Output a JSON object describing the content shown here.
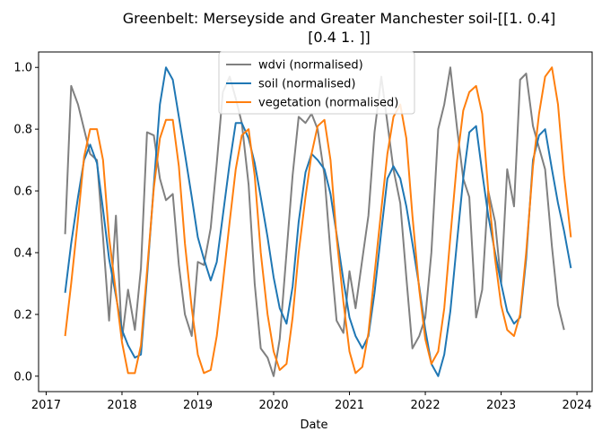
{
  "chart_data": {
    "type": "line",
    "title_line1": "Greenbelt: Merseyside and Greater Manchester soil-[[1.  0.4]",
    "title_line2": "[0.4 1. ]]",
    "xlabel": "Date",
    "ylabel": "",
    "xlim": [
      2016.9,
      2024.2
    ],
    "ylim": [
      -0.05,
      1.05
    ],
    "x_ticks": [
      2017,
      2018,
      2019,
      2020,
      2021,
      2022,
      2023,
      2024
    ],
    "x_tick_labels": [
      "2017",
      "2018",
      "2019",
      "2020",
      "2021",
      "2022",
      "2023",
      "2024"
    ],
    "y_ticks": [
      0.0,
      0.2,
      0.4,
      0.6,
      0.8,
      1.0
    ],
    "y_tick_labels": [
      "0.0",
      "0.2",
      "0.4",
      "0.6",
      "0.8",
      "1.0"
    ],
    "legend_position": "top-center",
    "grid": false,
    "series": [
      {
        "name": "wdvi (normalised)",
        "color": "#808080",
        "points": [
          [
            2017.25,
            0.46
          ],
          [
            2017.33,
            0.94
          ],
          [
            2017.42,
            0.88
          ],
          [
            2017.5,
            0.8
          ],
          [
            2017.58,
            0.72
          ],
          [
            2017.67,
            0.7
          ],
          [
            2017.75,
            0.45
          ],
          [
            2017.83,
            0.18
          ],
          [
            2017.92,
            0.52
          ],
          [
            2018.0,
            0.12
          ],
          [
            2018.08,
            0.28
          ],
          [
            2018.17,
            0.15
          ],
          [
            2018.25,
            0.35
          ],
          [
            2018.33,
            0.79
          ],
          [
            2018.42,
            0.78
          ],
          [
            2018.5,
            0.64
          ],
          [
            2018.58,
            0.57
          ],
          [
            2018.67,
            0.59
          ],
          [
            2018.75,
            0.36
          ],
          [
            2018.83,
            0.2
          ],
          [
            2018.92,
            0.13
          ],
          [
            2019.0,
            0.37
          ],
          [
            2019.08,
            0.36
          ],
          [
            2019.17,
            0.48
          ],
          [
            2019.25,
            0.69
          ],
          [
            2019.33,
            0.92
          ],
          [
            2019.42,
            0.97
          ],
          [
            2019.5,
            0.9
          ],
          [
            2019.58,
            0.82
          ],
          [
            2019.67,
            0.62
          ],
          [
            2019.75,
            0.3
          ],
          [
            2019.83,
            0.09
          ],
          [
            2019.92,
            0.06
          ],
          [
            2020.0,
            0.0
          ],
          [
            2020.08,
            0.12
          ],
          [
            2020.17,
            0.4
          ],
          [
            2020.25,
            0.65
          ],
          [
            2020.33,
            0.84
          ],
          [
            2020.42,
            0.82
          ],
          [
            2020.5,
            0.85
          ],
          [
            2020.58,
            0.8
          ],
          [
            2020.67,
            0.65
          ],
          [
            2020.75,
            0.4
          ],
          [
            2020.83,
            0.18
          ],
          [
            2020.92,
            0.14
          ],
          [
            2021.0,
            0.34
          ],
          [
            2021.08,
            0.22
          ],
          [
            2021.17,
            0.38
          ],
          [
            2021.25,
            0.52
          ],
          [
            2021.33,
            0.79
          ],
          [
            2021.42,
            0.97
          ],
          [
            2021.5,
            0.82
          ],
          [
            2021.58,
            0.67
          ],
          [
            2021.67,
            0.56
          ],
          [
            2021.75,
            0.32
          ],
          [
            2021.83,
            0.09
          ],
          [
            2021.92,
            0.13
          ],
          [
            2022.0,
            0.19
          ],
          [
            2022.08,
            0.4
          ],
          [
            2022.17,
            0.8
          ],
          [
            2022.25,
            0.88
          ],
          [
            2022.33,
            1.0
          ],
          [
            2022.42,
            0.8
          ],
          [
            2022.5,
            0.64
          ],
          [
            2022.58,
            0.58
          ],
          [
            2022.67,
            0.19
          ],
          [
            2022.75,
            0.28
          ],
          [
            2022.83,
            0.6
          ],
          [
            2022.92,
            0.5
          ],
          [
            2023.0,
            0.3
          ],
          [
            2023.08,
            0.67
          ],
          [
            2023.17,
            0.55
          ],
          [
            2023.25,
            0.96
          ],
          [
            2023.33,
            0.98
          ],
          [
            2023.42,
            0.81
          ],
          [
            2023.5,
            0.74
          ],
          [
            2023.58,
            0.67
          ],
          [
            2023.67,
            0.42
          ],
          [
            2023.75,
            0.23
          ],
          [
            2023.83,
            0.15
          ]
        ]
      },
      {
        "name": "soil (normalised)",
        "color": "#1f77b4",
        "points": [
          [
            2017.25,
            0.27
          ],
          [
            2017.33,
            0.43
          ],
          [
            2017.42,
            0.58
          ],
          [
            2017.5,
            0.7
          ],
          [
            2017.58,
            0.75
          ],
          [
            2017.67,
            0.69
          ],
          [
            2017.75,
            0.54
          ],
          [
            2017.83,
            0.38
          ],
          [
            2017.92,
            0.26
          ],
          [
            2018.0,
            0.15
          ],
          [
            2018.08,
            0.1
          ],
          [
            2018.17,
            0.06
          ],
          [
            2018.25,
            0.07
          ],
          [
            2018.33,
            0.32
          ],
          [
            2018.42,
            0.62
          ],
          [
            2018.5,
            0.88
          ],
          [
            2018.58,
            1.0
          ],
          [
            2018.67,
            0.96
          ],
          [
            2018.75,
            0.84
          ],
          [
            2018.83,
            0.72
          ],
          [
            2018.92,
            0.58
          ],
          [
            2019.0,
            0.45
          ],
          [
            2019.08,
            0.38
          ],
          [
            2019.17,
            0.31
          ],
          [
            2019.25,
            0.37
          ],
          [
            2019.33,
            0.52
          ],
          [
            2019.42,
            0.69
          ],
          [
            2019.5,
            0.82
          ],
          [
            2019.58,
            0.82
          ],
          [
            2019.67,
            0.77
          ],
          [
            2019.75,
            0.69
          ],
          [
            2019.83,
            0.58
          ],
          [
            2019.92,
            0.45
          ],
          [
            2020.0,
            0.32
          ],
          [
            2020.08,
            0.22
          ],
          [
            2020.17,
            0.17
          ],
          [
            2020.25,
            0.29
          ],
          [
            2020.33,
            0.5
          ],
          [
            2020.42,
            0.66
          ],
          [
            2020.5,
            0.72
          ],
          [
            2020.58,
            0.7
          ],
          [
            2020.67,
            0.67
          ],
          [
            2020.75,
            0.59
          ],
          [
            2020.83,
            0.46
          ],
          [
            2020.92,
            0.31
          ],
          [
            2021.0,
            0.19
          ],
          [
            2021.08,
            0.13
          ],
          [
            2021.17,
            0.09
          ],
          [
            2021.25,
            0.13
          ],
          [
            2021.33,
            0.27
          ],
          [
            2021.42,
            0.47
          ],
          [
            2021.5,
            0.64
          ],
          [
            2021.58,
            0.68
          ],
          [
            2021.67,
            0.64
          ],
          [
            2021.75,
            0.55
          ],
          [
            2021.83,
            0.43
          ],
          [
            2021.92,
            0.29
          ],
          [
            2022.0,
            0.15
          ],
          [
            2022.08,
            0.04
          ],
          [
            2022.17,
            0.0
          ],
          [
            2022.25,
            0.07
          ],
          [
            2022.33,
            0.21
          ],
          [
            2022.42,
            0.44
          ],
          [
            2022.5,
            0.64
          ],
          [
            2022.58,
            0.79
          ],
          [
            2022.67,
            0.81
          ],
          [
            2022.75,
            0.66
          ],
          [
            2022.83,
            0.52
          ],
          [
            2022.92,
            0.4
          ],
          [
            2023.0,
            0.3
          ],
          [
            2023.08,
            0.21
          ],
          [
            2023.17,
            0.17
          ],
          [
            2023.25,
            0.19
          ],
          [
            2023.33,
            0.38
          ],
          [
            2023.42,
            0.7
          ],
          [
            2023.5,
            0.78
          ],
          [
            2023.58,
            0.8
          ],
          [
            2023.67,
            0.67
          ],
          [
            2023.75,
            0.56
          ],
          [
            2023.83,
            0.47
          ],
          [
            2023.92,
            0.35
          ]
        ]
      },
      {
        "name": "vegetation (normalised)",
        "color": "#ff7f0e",
        "points": [
          [
            2017.25,
            0.13
          ],
          [
            2017.33,
            0.3
          ],
          [
            2017.42,
            0.51
          ],
          [
            2017.5,
            0.71
          ],
          [
            2017.58,
            0.8
          ],
          [
            2017.67,
            0.8
          ],
          [
            2017.75,
            0.7
          ],
          [
            2017.83,
            0.45
          ],
          [
            2017.92,
            0.27
          ],
          [
            2018.0,
            0.11
          ],
          [
            2018.08,
            0.01
          ],
          [
            2018.17,
            0.01
          ],
          [
            2018.25,
            0.1
          ],
          [
            2018.33,
            0.34
          ],
          [
            2018.42,
            0.61
          ],
          [
            2018.5,
            0.77
          ],
          [
            2018.58,
            0.83
          ],
          [
            2018.67,
            0.83
          ],
          [
            2018.75,
            0.68
          ],
          [
            2018.83,
            0.43
          ],
          [
            2018.92,
            0.22
          ],
          [
            2019.0,
            0.07
          ],
          [
            2019.08,
            0.01
          ],
          [
            2019.17,
            0.02
          ],
          [
            2019.25,
            0.13
          ],
          [
            2019.33,
            0.3
          ],
          [
            2019.42,
            0.5
          ],
          [
            2019.5,
            0.67
          ],
          [
            2019.58,
            0.78
          ],
          [
            2019.67,
            0.8
          ],
          [
            2019.75,
            0.65
          ],
          [
            2019.83,
            0.4
          ],
          [
            2019.92,
            0.2
          ],
          [
            2020.0,
            0.08
          ],
          [
            2020.08,
            0.02
          ],
          [
            2020.17,
            0.04
          ],
          [
            2020.25,
            0.19
          ],
          [
            2020.33,
            0.4
          ],
          [
            2020.42,
            0.58
          ],
          [
            2020.5,
            0.72
          ],
          [
            2020.58,
            0.81
          ],
          [
            2020.67,
            0.83
          ],
          [
            2020.75,
            0.7
          ],
          [
            2020.83,
            0.45
          ],
          [
            2020.92,
            0.24
          ],
          [
            2021.0,
            0.08
          ],
          [
            2021.08,
            0.01
          ],
          [
            2021.17,
            0.03
          ],
          [
            2021.25,
            0.14
          ],
          [
            2021.33,
            0.33
          ],
          [
            2021.42,
            0.54
          ],
          [
            2021.5,
            0.72
          ],
          [
            2021.58,
            0.84
          ],
          [
            2021.67,
            0.88
          ],
          [
            2021.75,
            0.77
          ],
          [
            2021.83,
            0.52
          ],
          [
            2021.92,
            0.28
          ],
          [
            2022.0,
            0.12
          ],
          [
            2022.08,
            0.04
          ],
          [
            2022.17,
            0.08
          ],
          [
            2022.25,
            0.22
          ],
          [
            2022.33,
            0.45
          ],
          [
            2022.42,
            0.7
          ],
          [
            2022.5,
            0.86
          ],
          [
            2022.58,
            0.92
          ],
          [
            2022.67,
            0.94
          ],
          [
            2022.75,
            0.85
          ],
          [
            2022.83,
            0.6
          ],
          [
            2022.92,
            0.38
          ],
          [
            2023.0,
            0.23
          ],
          [
            2023.08,
            0.15
          ],
          [
            2023.17,
            0.13
          ],
          [
            2023.25,
            0.2
          ],
          [
            2023.33,
            0.4
          ],
          [
            2023.42,
            0.68
          ],
          [
            2023.5,
            0.85
          ],
          [
            2023.58,
            0.97
          ],
          [
            2023.67,
            1.0
          ],
          [
            2023.75,
            0.88
          ],
          [
            2023.83,
            0.65
          ],
          [
            2023.92,
            0.45
          ]
        ]
      }
    ]
  }
}
